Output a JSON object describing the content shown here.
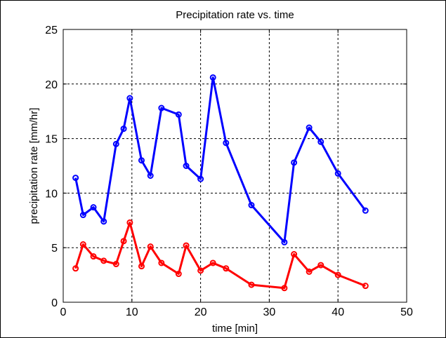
{
  "chart_data": {
    "type": "line",
    "title": "Precipitation rate vs. time",
    "xlabel": "time [min]",
    "ylabel": "precipitation rate [mm/hr]",
    "xlim": [
      0,
      50
    ],
    "ylim": [
      0,
      25
    ],
    "xticks": [
      0,
      10,
      20,
      30,
      40,
      50
    ],
    "yticks": [
      0,
      5,
      10,
      15,
      20,
      25
    ],
    "grid": true,
    "marker": "circle",
    "series": [
      {
        "color": "#0000ff",
        "points": [
          [
            1.8,
            11.4
          ],
          [
            2.9,
            8.0
          ],
          [
            4.4,
            8.7
          ],
          [
            5.9,
            7.4
          ],
          [
            7.7,
            14.5
          ],
          [
            8.8,
            15.9
          ],
          [
            9.7,
            18.7
          ],
          [
            11.4,
            13.0
          ],
          [
            12.7,
            11.6
          ],
          [
            14.3,
            17.8
          ],
          [
            16.8,
            17.2
          ],
          [
            17.9,
            12.5
          ],
          [
            20.0,
            11.3
          ],
          [
            21.8,
            20.6
          ],
          [
            23.7,
            14.6
          ],
          [
            27.4,
            8.9
          ],
          [
            32.2,
            5.5
          ],
          [
            33.6,
            12.8
          ],
          [
            35.8,
            16.0
          ],
          [
            37.5,
            14.7
          ],
          [
            40.0,
            11.8
          ],
          [
            44.0,
            8.4
          ]
        ]
      },
      {
        "color": "#ff0000",
        "points": [
          [
            1.8,
            3.1
          ],
          [
            2.9,
            5.3
          ],
          [
            4.4,
            4.2
          ],
          [
            5.9,
            3.8
          ],
          [
            7.7,
            3.5
          ],
          [
            8.8,
            5.6
          ],
          [
            9.7,
            7.3
          ],
          [
            11.4,
            3.3
          ],
          [
            12.7,
            5.1
          ],
          [
            14.3,
            3.6
          ],
          [
            16.8,
            2.6
          ],
          [
            17.9,
            5.2
          ],
          [
            20.0,
            2.9
          ],
          [
            21.8,
            3.6
          ],
          [
            23.7,
            3.1
          ],
          [
            27.4,
            1.6
          ],
          [
            32.2,
            1.3
          ],
          [
            33.6,
            4.4
          ],
          [
            35.8,
            2.8
          ],
          [
            37.5,
            3.4
          ],
          [
            40.0,
            2.5
          ],
          [
            44.0,
            1.5
          ]
        ]
      }
    ]
  }
}
